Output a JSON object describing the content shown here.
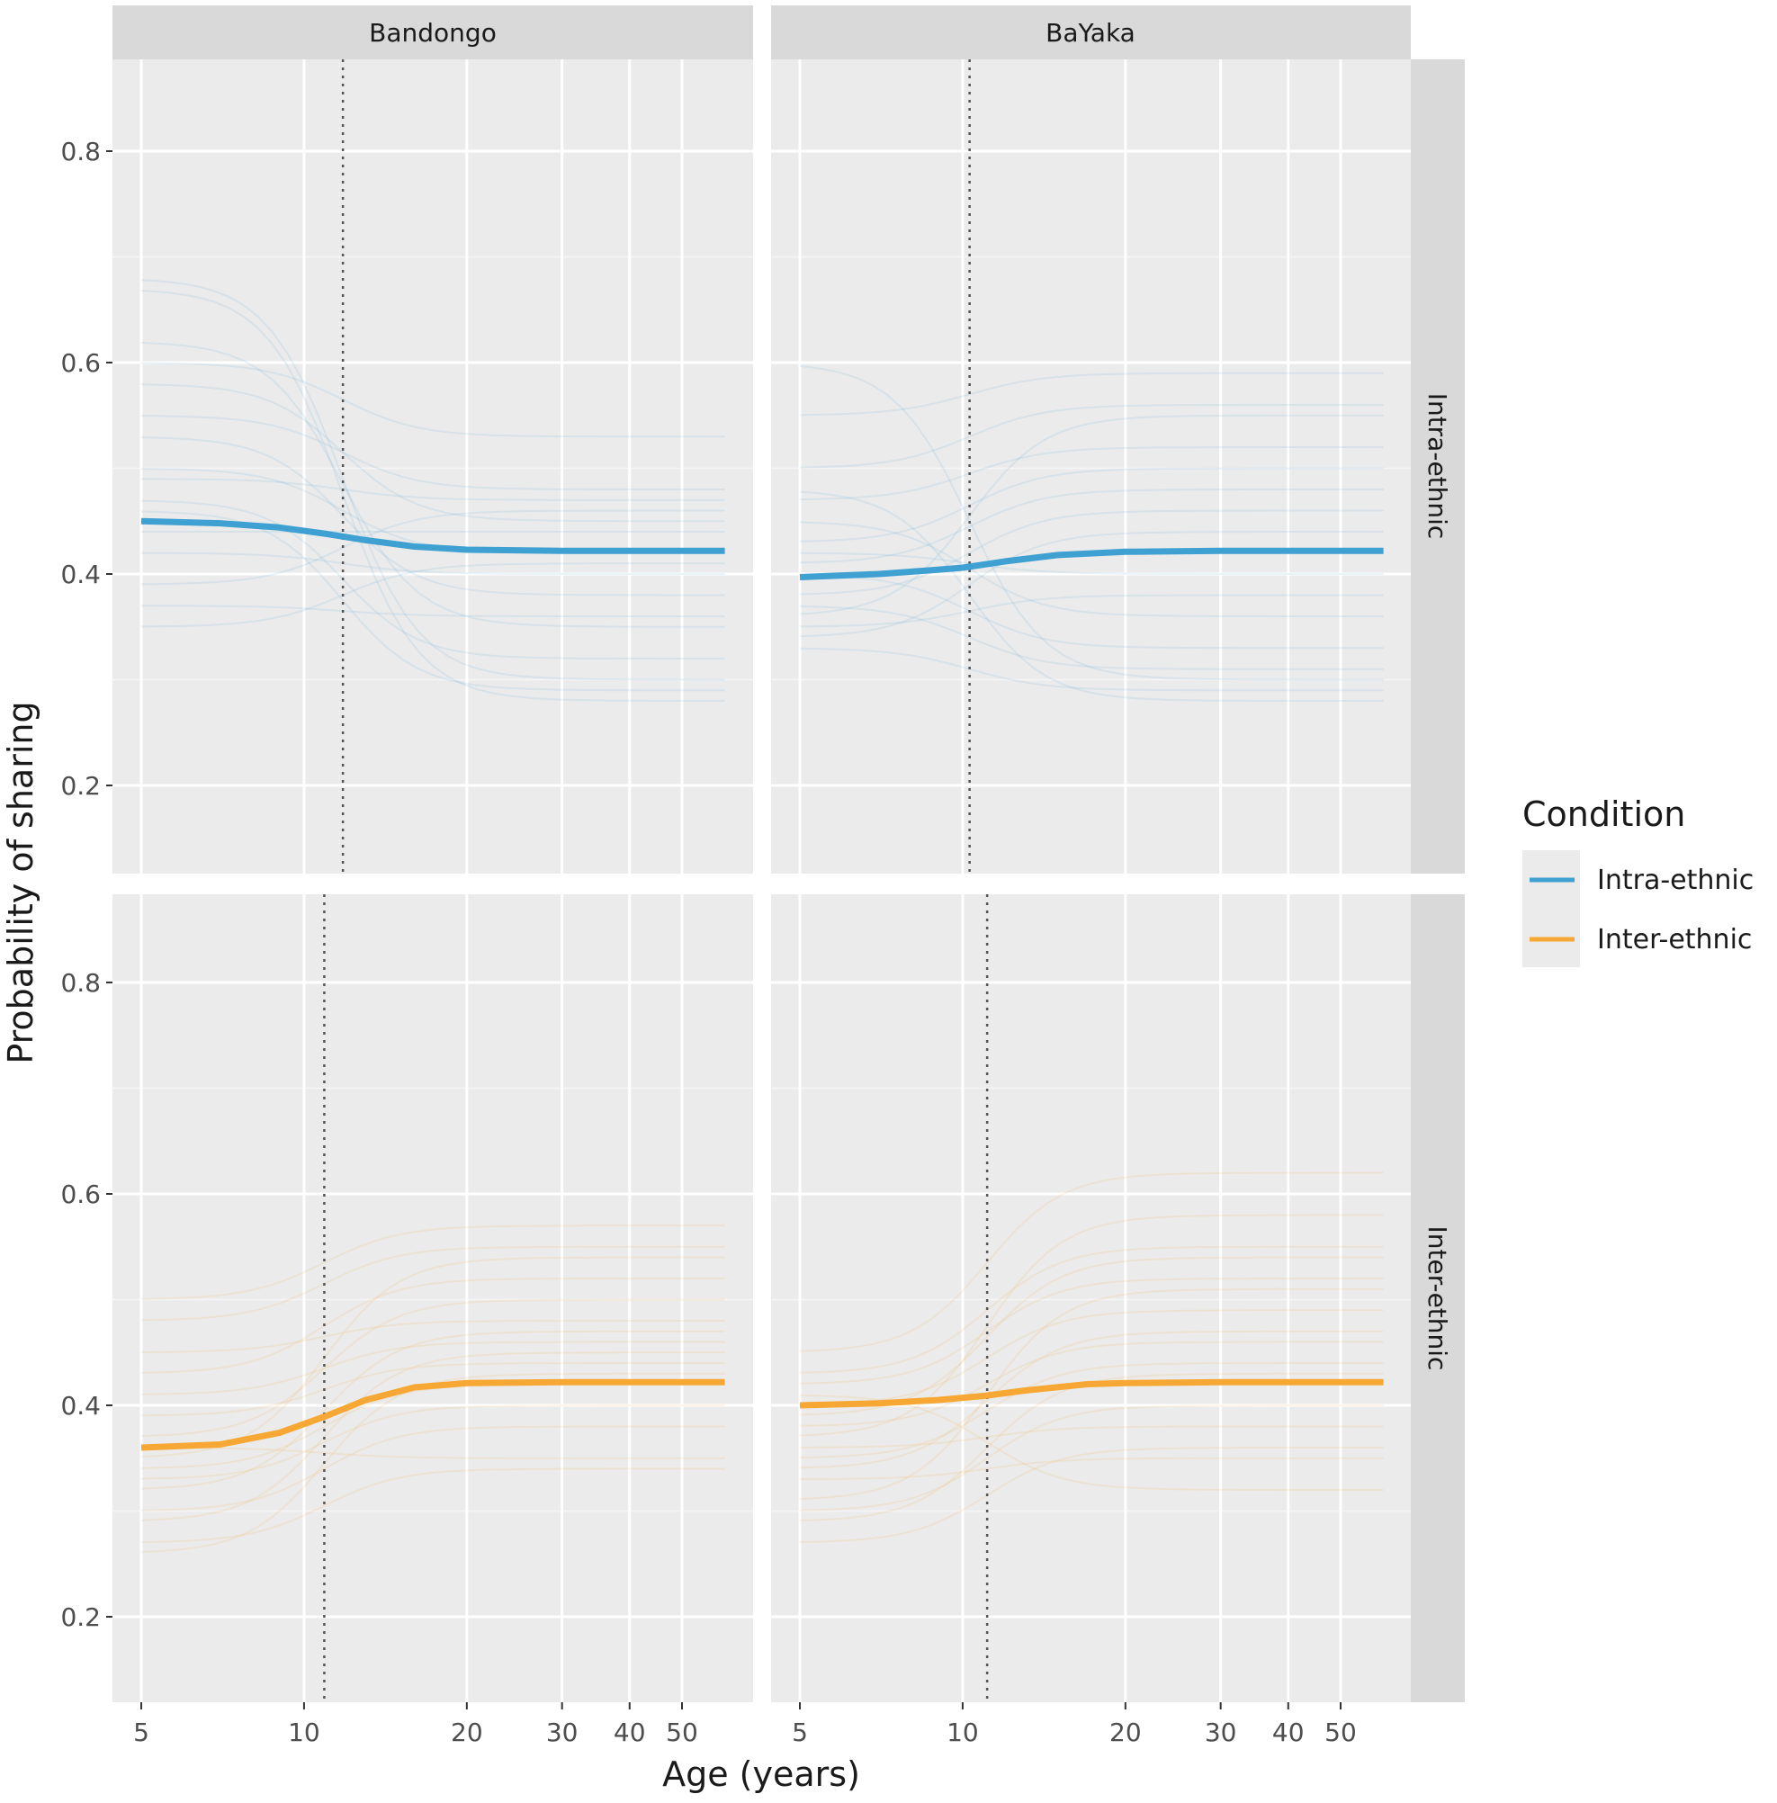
{
  "chart_data": {
    "type": "line",
    "title": "",
    "xlabel": "Age (years)",
    "ylabel": "Probability of sharing",
    "x_scale": "log10",
    "xlim": [
      5,
      60
    ],
    "ylim": [
      0.117,
      0.887
    ],
    "x_ticks": [
      5,
      10,
      20,
      30,
      40,
      50
    ],
    "x_tick_labels": [
      "5",
      "10",
      "20",
      "30",
      "40",
      "50"
    ],
    "y_ticks": [
      0.2,
      0.4,
      0.6,
      0.8
    ],
    "y_tick_labels": [
      "0.2",
      "0.4",
      "0.6",
      "0.8"
    ],
    "grid": true,
    "col_facets": [
      "Bandongo",
      "BaYaka"
    ],
    "row_facets": [
      "Intra-ethnic",
      "Inter-ethnic"
    ],
    "legend": {
      "title": "Condition",
      "position": "right",
      "entries": [
        {
          "label": "Intra-ethnic",
          "color": "#3fa0d2"
        },
        {
          "label": "Inter-ethnic",
          "color": "#f7a733"
        }
      ]
    },
    "panels": [
      {
        "col": "Bandongo",
        "row": "Intra-ethnic",
        "color": "#3fa0d2",
        "threshold_age": 11.8,
        "mean": {
          "x": [
            5,
            7,
            9,
            11,
            13,
            16,
            20,
            30,
            40,
            60
          ],
          "y": [
            0.45,
            0.448,
            0.444,
            0.438,
            0.432,
            0.426,
            0.423,
            0.422,
            0.422,
            0.422
          ]
        },
        "samples": [
          [
            0.68,
            0.3
          ],
          [
            0.67,
            0.28
          ],
          [
            0.62,
            0.35
          ],
          [
            0.6,
            0.53
          ],
          [
            0.58,
            0.45
          ],
          [
            0.55,
            0.48
          ],
          [
            0.53,
            0.38
          ],
          [
            0.5,
            0.42
          ],
          [
            0.49,
            0.47
          ],
          [
            0.47,
            0.32
          ],
          [
            0.44,
            0.44
          ],
          [
            0.42,
            0.4
          ],
          [
            0.39,
            0.46
          ],
          [
            0.37,
            0.36
          ],
          [
            0.35,
            0.41
          ],
          [
            0.46,
            0.29
          ]
        ]
      },
      {
        "col": "BaYaka",
        "row": "Intra-ethnic",
        "color": "#3fa0d2",
        "threshold_age": 10.3,
        "mean": {
          "x": [
            5,
            7,
            9,
            10,
            12,
            15,
            20,
            30,
            40,
            60
          ],
          "y": [
            0.397,
            0.4,
            0.404,
            0.406,
            0.412,
            0.418,
            0.421,
            0.422,
            0.422,
            0.422
          ]
        },
        "samples": [
          [
            0.6,
            0.3
          ],
          [
            0.55,
            0.59
          ],
          [
            0.5,
            0.56
          ],
          [
            0.48,
            0.28
          ],
          [
            0.47,
            0.52
          ],
          [
            0.45,
            0.36
          ],
          [
            0.43,
            0.5
          ],
          [
            0.41,
            0.48
          ],
          [
            0.4,
            0.33
          ],
          [
            0.38,
            0.46
          ],
          [
            0.37,
            0.31
          ],
          [
            0.36,
            0.55
          ],
          [
            0.35,
            0.38
          ],
          [
            0.34,
            0.44
          ],
          [
            0.33,
            0.29
          ],
          [
            0.42,
            0.4
          ]
        ]
      },
      {
        "col": "Bandongo",
        "row": "Inter-ethnic",
        "color": "#f7a733",
        "threshold_age": 10.9,
        "mean": {
          "x": [
            5,
            7,
            9,
            11,
            13,
            16,
            20,
            30,
            40,
            60
          ],
          "y": [
            0.36,
            0.363,
            0.374,
            0.39,
            0.405,
            0.417,
            0.421,
            0.422,
            0.422,
            0.422
          ]
        },
        "samples": [
          [
            0.5,
            0.57
          ],
          [
            0.48,
            0.55
          ],
          [
            0.45,
            0.48
          ],
          [
            0.43,
            0.52
          ],
          [
            0.41,
            0.46
          ],
          [
            0.39,
            0.44
          ],
          [
            0.37,
            0.5
          ],
          [
            0.36,
            0.35
          ],
          [
            0.34,
            0.42
          ],
          [
            0.33,
            0.4
          ],
          [
            0.32,
            0.47
          ],
          [
            0.3,
            0.38
          ],
          [
            0.29,
            0.45
          ],
          [
            0.27,
            0.34
          ],
          [
            0.26,
            0.43
          ],
          [
            0.35,
            0.54
          ]
        ]
      },
      {
        "col": "BaYaka",
        "row": "Inter-ethnic",
        "color": "#f7a733",
        "threshold_age": 11.1,
        "mean": {
          "x": [
            5,
            7,
            9,
            11,
            13,
            17,
            20,
            30,
            40,
            60
          ],
          "y": [
            0.4,
            0.402,
            0.405,
            0.409,
            0.414,
            0.42,
            0.421,
            0.422,
            0.422,
            0.422
          ]
        },
        "samples": [
          [
            0.45,
            0.62
          ],
          [
            0.43,
            0.55
          ],
          [
            0.42,
            0.52
          ],
          [
            0.41,
            0.32
          ],
          [
            0.4,
            0.49
          ],
          [
            0.38,
            0.46
          ],
          [
            0.37,
            0.58
          ],
          [
            0.36,
            0.38
          ],
          [
            0.35,
            0.44
          ],
          [
            0.34,
            0.47
          ],
          [
            0.33,
            0.35
          ],
          [
            0.31,
            0.51
          ],
          [
            0.3,
            0.4
          ],
          [
            0.29,
            0.43
          ],
          [
            0.27,
            0.36
          ],
          [
            0.39,
            0.54
          ]
        ]
      }
    ]
  }
}
